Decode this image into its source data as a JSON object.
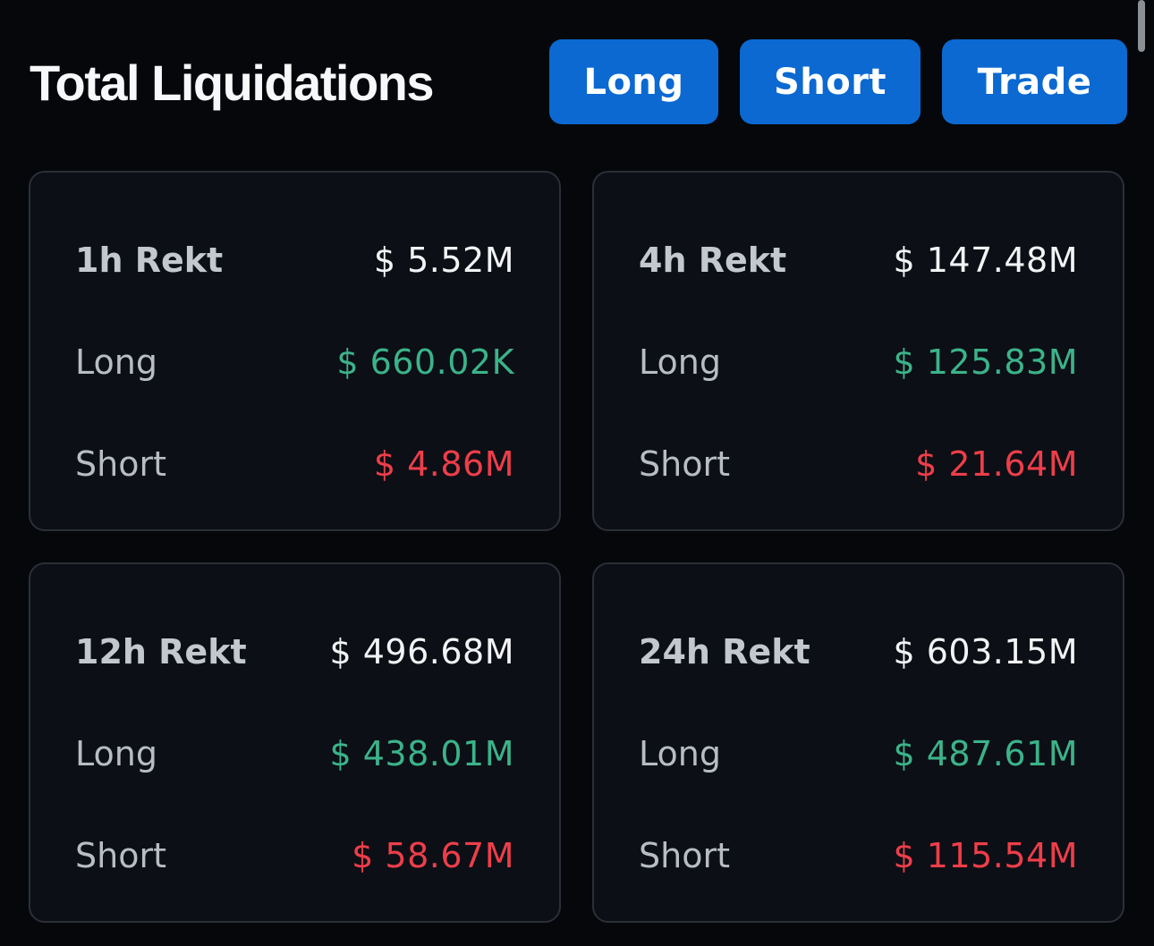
{
  "header": {
    "title": "Total Liquidations",
    "buttons": {
      "long": "Long",
      "short": "Short",
      "trade": "Trade"
    }
  },
  "colors": {
    "background": "#05070b",
    "card": "#0c0f15",
    "button": "#0b69d1",
    "long": "#3bb38a",
    "short": "#ee3e4a"
  },
  "cards": [
    {
      "period_label": "1h Rekt",
      "total": "$ 5.52M",
      "long_label": "Long",
      "long_value": "$ 660.02K",
      "short_label": "Short",
      "short_value": "$ 4.86M"
    },
    {
      "period_label": "4h Rekt",
      "total": "$ 147.48M",
      "long_label": "Long",
      "long_value": "$ 125.83M",
      "short_label": "Short",
      "short_value": "$ 21.64M"
    },
    {
      "period_label": "12h Rekt",
      "total": "$ 496.68M",
      "long_label": "Long",
      "long_value": "$ 438.01M",
      "short_label": "Short",
      "short_value": "$ 58.67M"
    },
    {
      "period_label": "24h Rekt",
      "total": "$ 603.15M",
      "long_label": "Long",
      "long_value": "$ 487.61M",
      "short_label": "Short",
      "short_value": "$ 115.54M"
    }
  ]
}
